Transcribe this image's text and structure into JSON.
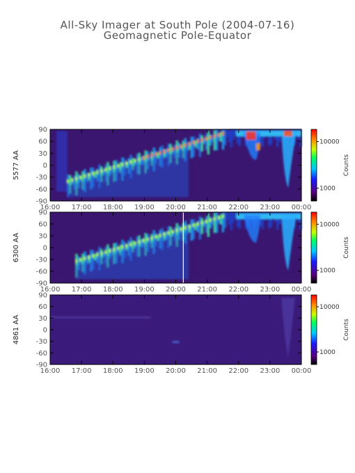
{
  "header": {
    "title_line1": "All-Sky Imager at South Pole (2004-07-16)",
    "title_line2": "Geomagnetic Pole-Equator"
  },
  "chart_data": [
    {
      "type": "heatmap",
      "ylabel": "5577 AA",
      "x_ticks": [
        "16:00",
        "17:00",
        "18:00",
        "19:00",
        "20:00",
        "21:00",
        "22:00",
        "23:00",
        "00:00"
      ],
      "y_ticks": [
        90,
        60,
        30,
        0,
        -30,
        -60,
        -90
      ],
      "ylim": [
        -90,
        90
      ],
      "colorbar": {
        "label": "Counts",
        "ticks": [
          "10000",
          "1000"
        ],
        "scale": "log"
      }
    },
    {
      "type": "heatmap",
      "ylabel": "6300 AA",
      "x_ticks": [
        "16:00",
        "17:00",
        "18:00",
        "19:00",
        "20:00",
        "21:00",
        "22:00",
        "23:00",
        "00:00"
      ],
      "y_ticks": [
        90,
        60,
        30,
        0,
        -30,
        -60,
        -90
      ],
      "ylim": [
        -90,
        90
      ],
      "colorbar": {
        "label": "Counts",
        "ticks": [
          "10000",
          "1000"
        ],
        "scale": "log"
      }
    },
    {
      "type": "heatmap",
      "ylabel": "4861 AA",
      "x_ticks": [
        "16:00",
        "17:00",
        "18:00",
        "19:00",
        "20:00",
        "21:00",
        "22:00",
        "23:00",
        "00:00"
      ],
      "y_ticks": [
        90,
        60,
        30,
        0,
        -30,
        -60,
        -90
      ],
      "ylim": [
        -90,
        90
      ],
      "colorbar": {
        "label": "Counts",
        "ticks": [
          "10000",
          "1000"
        ],
        "scale": "log"
      }
    }
  ]
}
